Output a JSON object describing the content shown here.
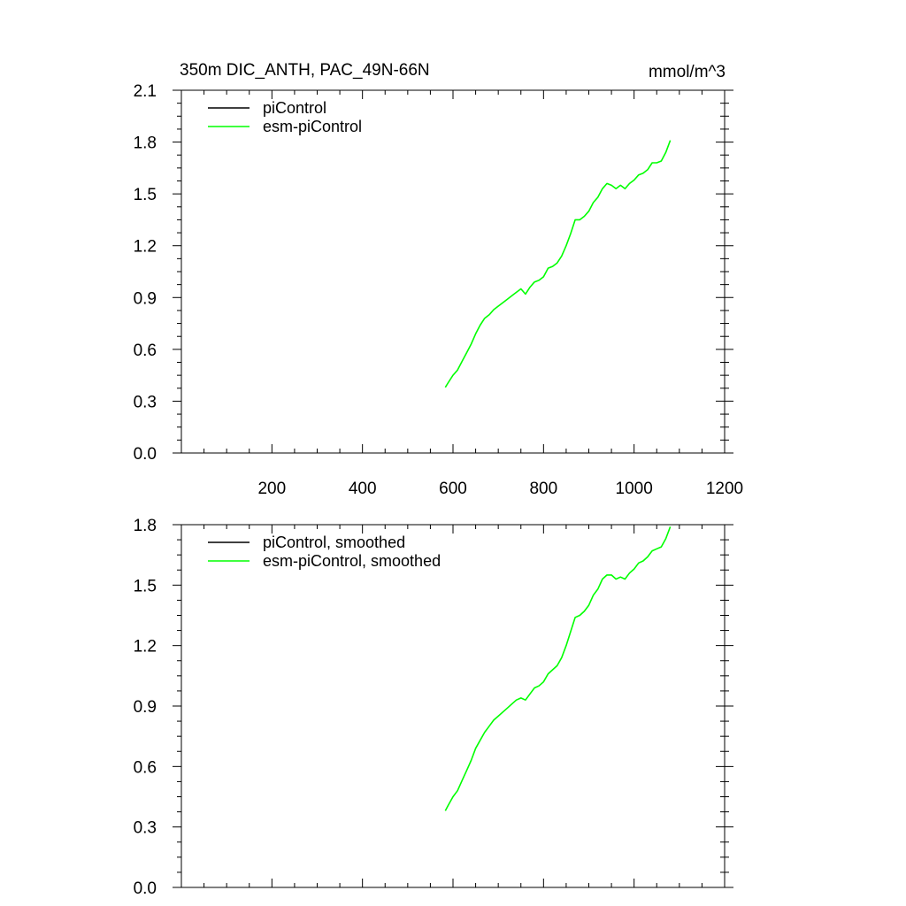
{
  "page_title": "350m DIC_ANTH, PAC_49N-66N",
  "colors": {
    "piControl": "#000000",
    "esm_piControl": "#00ff00",
    "axes": "#000000",
    "background": "#ffffff"
  },
  "chart_data": [
    {
      "type": "line",
      "title": "350m DIC_ANTH, PAC_49N-66N",
      "units": "mmol/m^3",
      "xlabel": "",
      "ylabel": "",
      "xlim": [
        0,
        1200
      ],
      "ylim": [
        0.0,
        2.1
      ],
      "x_ticks": [
        200,
        400,
        600,
        800,
        1000,
        1200
      ],
      "x_tick_labels": [
        "200",
        "400",
        "600",
        "800",
        "1000",
        "1200"
      ],
      "y_ticks": [
        0.0,
        0.3,
        0.6,
        0.9,
        1.2,
        1.5,
        1.8,
        2.1
      ],
      "y_tick_labels": [
        "0.0",
        "0.3",
        "0.6",
        "0.9",
        "1.2",
        "1.5",
        "1.8",
        "2.1"
      ],
      "grid": false,
      "legend_position": "top-left",
      "legend": [
        "piControl",
        "esm-piControl"
      ],
      "series": [
        {
          "name": "piControl",
          "color": "#000000",
          "x": [],
          "y": []
        },
        {
          "name": "esm-piControl",
          "color": "#00ff00",
          "x": [
            583,
            590,
            600,
            610,
            620,
            630,
            640,
            650,
            660,
            670,
            680,
            690,
            700,
            710,
            720,
            730,
            740,
            750,
            760,
            770,
            780,
            790,
            800,
            810,
            820,
            830,
            840,
            850,
            860,
            870,
            880,
            890,
            900,
            910,
            920,
            930,
            940,
            950,
            960,
            970,
            980,
            990,
            1000,
            1010,
            1020,
            1030,
            1040,
            1050,
            1060,
            1070,
            1080
          ],
          "y": [
            0.38,
            0.41,
            0.45,
            0.48,
            0.53,
            0.58,
            0.63,
            0.69,
            0.74,
            0.78,
            0.8,
            0.83,
            0.85,
            0.87,
            0.89,
            0.91,
            0.93,
            0.95,
            0.92,
            0.96,
            0.99,
            1.0,
            1.02,
            1.07,
            1.08,
            1.1,
            1.14,
            1.2,
            1.27,
            1.35,
            1.35,
            1.37,
            1.4,
            1.45,
            1.48,
            1.53,
            1.56,
            1.55,
            1.53,
            1.55,
            1.53,
            1.56,
            1.58,
            1.61,
            1.62,
            1.64,
            1.68,
            1.68,
            1.69,
            1.74,
            1.81
          ]
        }
      ]
    },
    {
      "type": "line",
      "title": "",
      "xlabel": "",
      "ylabel": "",
      "xlim": [
        0,
        1200
      ],
      "ylim": [
        0.0,
        1.8
      ],
      "x_ticks": [
        200,
        400,
        600,
        800,
        1000,
        1200
      ],
      "x_tick_labels": [],
      "y_ticks": [
        0.0,
        0.3,
        0.6,
        0.9,
        1.2,
        1.5,
        1.8
      ],
      "y_tick_labels": [
        "0.0",
        "0.3",
        "0.6",
        "0.9",
        "1.2",
        "1.5",
        "1.8"
      ],
      "grid": false,
      "legend_position": "top-left",
      "legend": [
        "piControl, smoothed",
        "esm-piControl, smoothed"
      ],
      "series": [
        {
          "name": "piControl, smoothed",
          "color": "#000000",
          "x": [],
          "y": []
        },
        {
          "name": "esm-piControl, smoothed",
          "color": "#00ff00",
          "x": [
            583,
            590,
            600,
            610,
            620,
            630,
            640,
            650,
            660,
            670,
            680,
            690,
            700,
            710,
            720,
            730,
            740,
            750,
            760,
            770,
            780,
            790,
            800,
            810,
            820,
            830,
            840,
            850,
            860,
            870,
            880,
            890,
            900,
            910,
            920,
            930,
            940,
            950,
            960,
            970,
            980,
            990,
            1000,
            1010,
            1020,
            1030,
            1040,
            1050,
            1060,
            1070,
            1080
          ],
          "y": [
            0.38,
            0.41,
            0.45,
            0.48,
            0.53,
            0.58,
            0.63,
            0.69,
            0.73,
            0.77,
            0.8,
            0.83,
            0.85,
            0.87,
            0.89,
            0.91,
            0.93,
            0.94,
            0.93,
            0.96,
            0.99,
            1.0,
            1.02,
            1.06,
            1.08,
            1.1,
            1.14,
            1.2,
            1.27,
            1.34,
            1.35,
            1.37,
            1.4,
            1.45,
            1.48,
            1.53,
            1.55,
            1.55,
            1.53,
            1.54,
            1.53,
            1.56,
            1.58,
            1.61,
            1.62,
            1.64,
            1.67,
            1.68,
            1.69,
            1.73,
            1.79
          ]
        }
      ]
    }
  ]
}
